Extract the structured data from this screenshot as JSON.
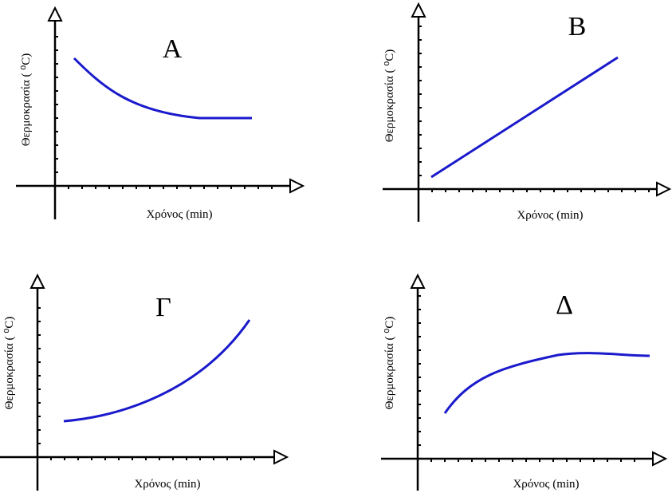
{
  "panels": [
    {
      "label": "A",
      "y_label": "Θερμοκρασία ( ⁰C)",
      "x_label": "Χρόνος (min)"
    },
    {
      "label": "B",
      "y_label": "Θερμοκρασία ( ⁰C)",
      "x_label": "Χρόνος (min)"
    },
    {
      "label": "Γ",
      "y_label": "Θερμοκρασία ( ⁰C)",
      "x_label": "Χρόνος (min)"
    },
    {
      "label": "Δ",
      "y_label": "Θερμοκρασία ( ⁰C)",
      "x_label": "Χρόνος (min)"
    }
  ]
}
